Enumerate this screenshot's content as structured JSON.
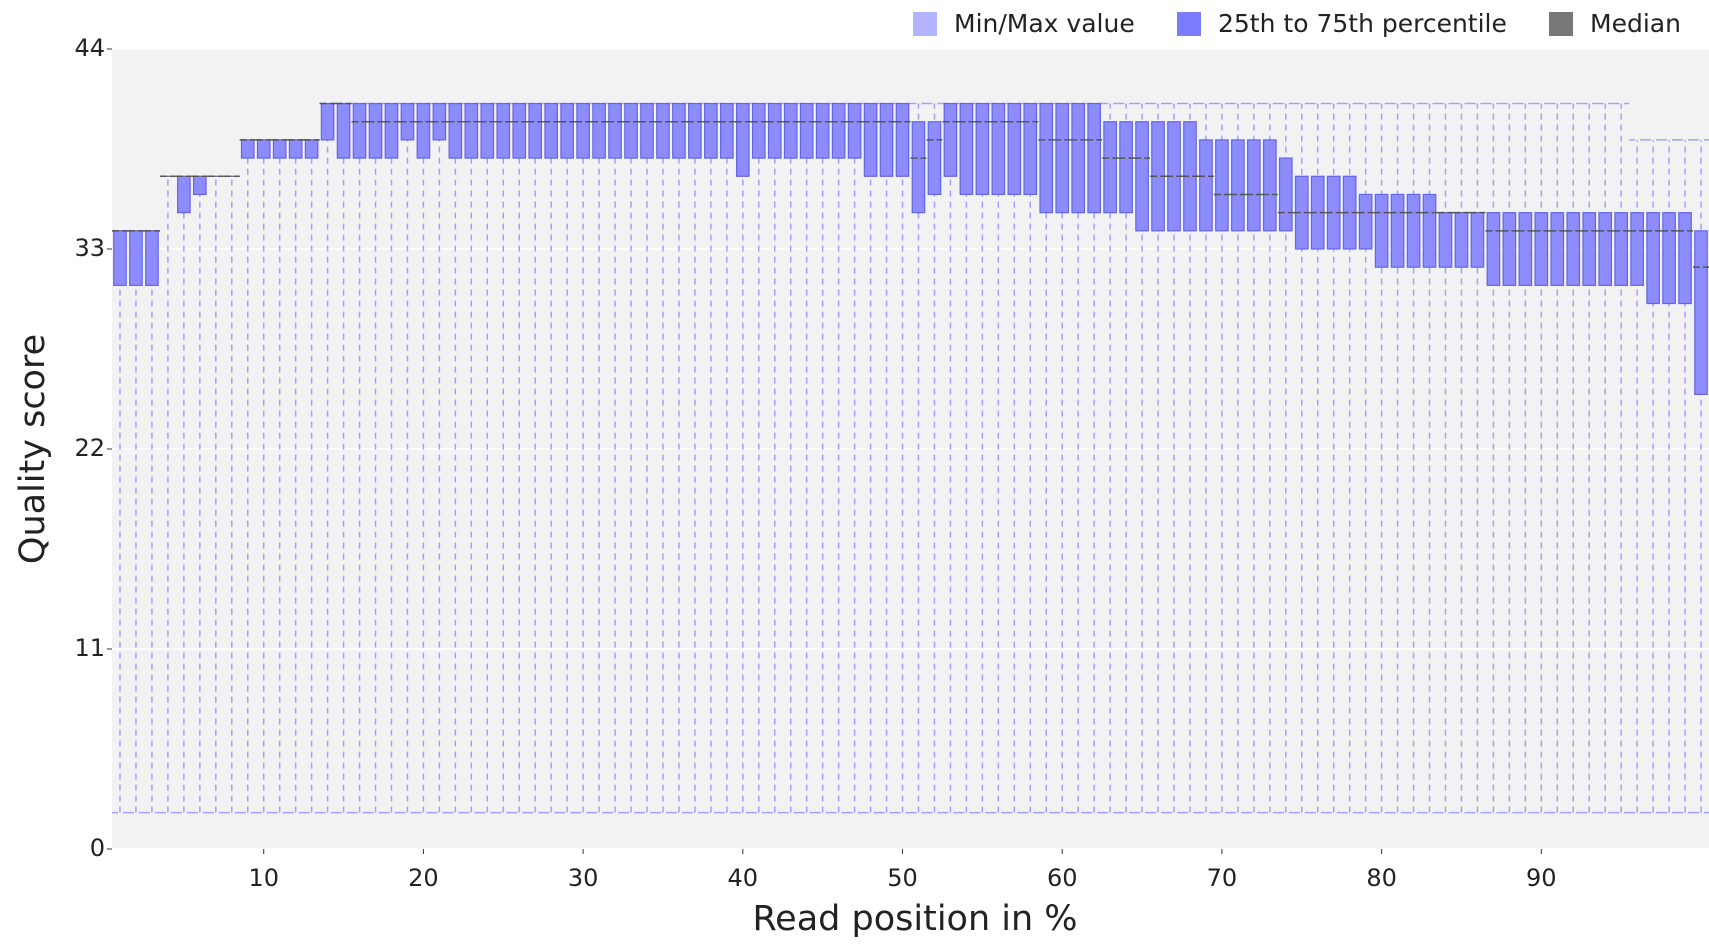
{
  "chart_data": {
    "type": "box",
    "x_label": "Read position in %",
    "y_label": "Quality score",
    "legend": [
      {
        "name": "Min/Max value",
        "color": "#b3b3ff"
      },
      {
        "name": "25th to 75th percentile",
        "color": "#7b7bff"
      },
      {
        "name": "Median",
        "color": "#777777"
      }
    ],
    "x": [
      1,
      2,
      3,
      4,
      5,
      6,
      7,
      8,
      9,
      10,
      11,
      12,
      13,
      14,
      15,
      16,
      17,
      18,
      19,
      20,
      21,
      22,
      23,
      24,
      25,
      26,
      27,
      28,
      29,
      30,
      31,
      32,
      33,
      34,
      35,
      36,
      37,
      38,
      39,
      40,
      41,
      42,
      43,
      44,
      45,
      46,
      47,
      48,
      49,
      50,
      51,
      52,
      53,
      54,
      55,
      56,
      57,
      58,
      59,
      60,
      61,
      62,
      63,
      64,
      65,
      66,
      67,
      68,
      69,
      70,
      71,
      72,
      73,
      74,
      75,
      76,
      77,
      78,
      79,
      80,
      81,
      82,
      83,
      84,
      85,
      86,
      87,
      88,
      89,
      90,
      91,
      92,
      93,
      94,
      95,
      96,
      97,
      98,
      99,
      100
    ],
    "min": [
      2,
      2,
      2,
      2,
      2,
      2,
      2,
      2,
      2,
      2,
      2,
      2,
      2,
      2,
      2,
      2,
      2,
      2,
      2,
      2,
      2,
      2,
      2,
      2,
      2,
      2,
      2,
      2,
      2,
      2,
      2,
      2,
      2,
      2,
      2,
      2,
      2,
      2,
      2,
      2,
      2,
      2,
      2,
      2,
      2,
      2,
      2,
      2,
      2,
      2,
      2,
      2,
      2,
      2,
      2,
      2,
      2,
      2,
      2,
      2,
      2,
      2,
      2,
      2,
      2,
      2,
      2,
      2,
      2,
      2,
      2,
      2,
      2,
      2,
      2,
      2,
      2,
      2,
      2,
      2,
      2,
      2,
      2,
      2,
      2,
      2,
      2,
      2,
      2,
      2,
      2,
      2,
      2,
      2,
      2,
      2,
      2,
      2,
      2,
      2
    ],
    "q1": [
      31,
      31,
      31,
      37,
      35,
      36,
      37,
      37,
      38,
      38,
      38,
      38,
      38,
      39,
      38,
      38,
      38,
      38,
      39,
      38,
      39,
      38,
      38,
      38,
      38,
      38,
      38,
      38,
      38,
      38,
      38,
      38,
      38,
      38,
      38,
      38,
      38,
      38,
      38,
      37,
      38,
      38,
      38,
      38,
      38,
      38,
      38,
      37,
      37,
      37,
      35,
      36,
      37,
      36,
      36,
      36,
      36,
      36,
      35,
      35,
      35,
      35,
      35,
      35,
      34,
      34,
      34,
      34,
      34,
      34,
      34,
      34,
      34,
      34,
      33,
      33,
      33,
      33,
      33,
      32,
      32,
      32,
      32,
      32,
      32,
      32,
      31,
      31,
      31,
      31,
      31,
      31,
      31,
      31,
      31,
      31,
      30,
      30,
      30,
      25
    ],
    "median": [
      34,
      34,
      34,
      37,
      37,
      37,
      37,
      37,
      39,
      39,
      39,
      39,
      39,
      41,
      41,
      40,
      40,
      40,
      40,
      40,
      40,
      40,
      40,
      40,
      40,
      40,
      40,
      40,
      40,
      40,
      40,
      40,
      40,
      40,
      40,
      40,
      40,
      40,
      40,
      40,
      40,
      40,
      40,
      40,
      40,
      40,
      40,
      40,
      40,
      40,
      38,
      39,
      40,
      40,
      40,
      40,
      40,
      40,
      39,
      39,
      39,
      39,
      38,
      38,
      38,
      37,
      37,
      37,
      37,
      36,
      36,
      36,
      36,
      35,
      35,
      35,
      35,
      35,
      35,
      35,
      35,
      35,
      35,
      35,
      35,
      35,
      34,
      34,
      34,
      34,
      34,
      34,
      34,
      34,
      34,
      34,
      34,
      34,
      34,
      32
    ],
    "q3": [
      34,
      34,
      34,
      37,
      37,
      37,
      37,
      37,
      39,
      39,
      39,
      39,
      39,
      41,
      41,
      41,
      41,
      41,
      41,
      41,
      41,
      41,
      41,
      41,
      41,
      41,
      41,
      41,
      41,
      41,
      41,
      41,
      41,
      41,
      41,
      41,
      41,
      41,
      41,
      41,
      41,
      41,
      41,
      41,
      41,
      41,
      41,
      41,
      41,
      41,
      40,
      40,
      41,
      41,
      41,
      41,
      41,
      41,
      41,
      41,
      41,
      41,
      40,
      40,
      40,
      40,
      40,
      40,
      39,
      39,
      39,
      39,
      39,
      38,
      37,
      37,
      37,
      37,
      36,
      36,
      36,
      36,
      36,
      35,
      35,
      35,
      35,
      35,
      35,
      35,
      35,
      35,
      35,
      35,
      35,
      35,
      35,
      35,
      35,
      34
    ],
    "max": [
      34,
      34,
      34,
      37,
      37,
      37,
      37,
      37,
      39,
      39,
      39,
      39,
      39,
      41,
      41,
      41,
      41,
      41,
      41,
      41,
      41,
      41,
      41,
      41,
      41,
      41,
      41,
      41,
      41,
      41,
      41,
      41,
      41,
      41,
      41,
      41,
      41,
      41,
      41,
      41,
      41,
      41,
      41,
      41,
      41,
      41,
      41,
      41,
      41,
      41,
      41,
      41,
      41,
      41,
      41,
      41,
      41,
      41,
      41,
      41,
      41,
      41,
      41,
      41,
      41,
      41,
      41,
      41,
      41,
      41,
      41,
      41,
      41,
      41,
      41,
      41,
      41,
      41,
      41,
      41,
      41,
      41,
      41,
      41,
      41,
      41,
      41,
      41,
      41,
      41,
      41,
      41,
      41,
      41,
      41,
      39,
      39,
      39,
      39,
      39
    ],
    "xlim": [
      0.5,
      100.5
    ],
    "xticks": [
      10,
      20,
      30,
      40,
      50,
      60,
      70,
      80,
      90
    ],
    "ylim": [
      0,
      44
    ],
    "yticks": [
      0,
      11,
      22,
      33,
      44
    ],
    "grid": true
  }
}
